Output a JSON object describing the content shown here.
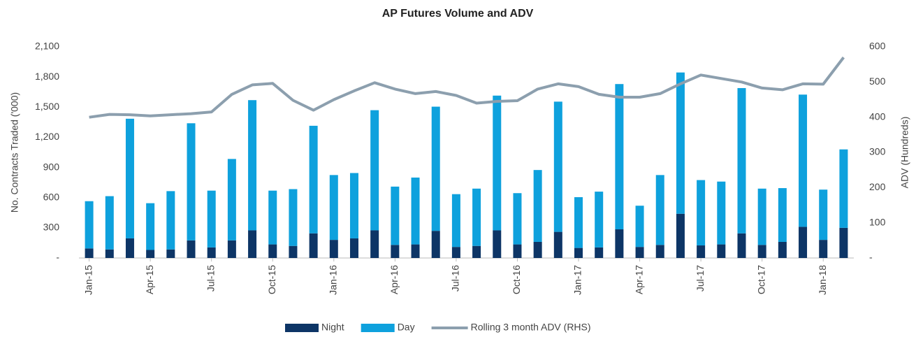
{
  "chart_data": {
    "type": "bar",
    "stacked": true,
    "title": "AP Futures Volume and ADV",
    "y_label": "No. Contracts Traded ('000)",
    "y2_label": "ADV (Hundreds)",
    "categories": [
      "Jan-15",
      null,
      null,
      "Apr-15",
      null,
      null,
      "Jul-15",
      null,
      null,
      "Oct-15",
      null,
      null,
      "Jan-16",
      null,
      null,
      "Apr-16",
      null,
      null,
      "Jul-16",
      null,
      null,
      "Oct-16",
      null,
      null,
      "Jan-17",
      null,
      null,
      "Apr-17",
      null,
      null,
      "Jul-17",
      null,
      null,
      "Oct-17",
      null,
      null,
      "Jan-18",
      null
    ],
    "series": [
      {
        "name": "Night",
        "color": "#0d3566",
        "values": [
          95,
          85,
          195,
          80,
          85,
          175,
          105,
          175,
          275,
          135,
          120,
          245,
          180,
          195,
          275,
          130,
          135,
          270,
          110,
          120,
          275,
          135,
          160,
          260,
          100,
          105,
          285,
          110,
          130,
          440,
          125,
          135,
          245,
          130,
          160,
          310,
          180,
          300
        ]
      },
      {
        "name": "Day",
        "color": "#0ea1dd",
        "values": [
          470,
          530,
          1190,
          465,
          580,
          1165,
          565,
          810,
          1295,
          535,
          565,
          1070,
          645,
          650,
          1195,
          580,
          665,
          1235,
          525,
          570,
          1340,
          510,
          715,
          1295,
          505,
          555,
          1445,
          410,
          695,
          1405,
          650,
          625,
          1445,
          560,
          535,
          1315,
          500,
          780
        ]
      },
      {
        "name": "Rolling 3 month ADV (RHS)",
        "color": "#8c9fae",
        "type": "line",
        "axis": "y2",
        "values": [
          400,
          408,
          407,
          404,
          407,
          410,
          415,
          465,
          492,
          496,
          448,
          420,
          450,
          475,
          498,
          480,
          467,
          473,
          462,
          440,
          445,
          447,
          480,
          495,
          487,
          465,
          457,
          457,
          467,
          495,
          520,
          510,
          500,
          483,
          478,
          495,
          494,
          570
        ]
      }
    ],
    "ylim": [
      0,
      2100
    ],
    "yticks": [
      {
        "value": 0,
        "label": "-"
      },
      300,
      600,
      900,
      {
        "value": 1200,
        "label": "1,200"
      },
      {
        "value": 1500,
        "label": "1,500"
      },
      {
        "value": 1800,
        "label": "1,800"
      },
      {
        "value": 2100,
        "label": "2,100"
      }
    ],
    "y2lim": [
      0,
      600
    ],
    "y2ticks": [
      {
        "value": 0,
        "label": "-"
      },
      100,
      200,
      300,
      400,
      500,
      600
    ],
    "legend": "bottom"
  }
}
